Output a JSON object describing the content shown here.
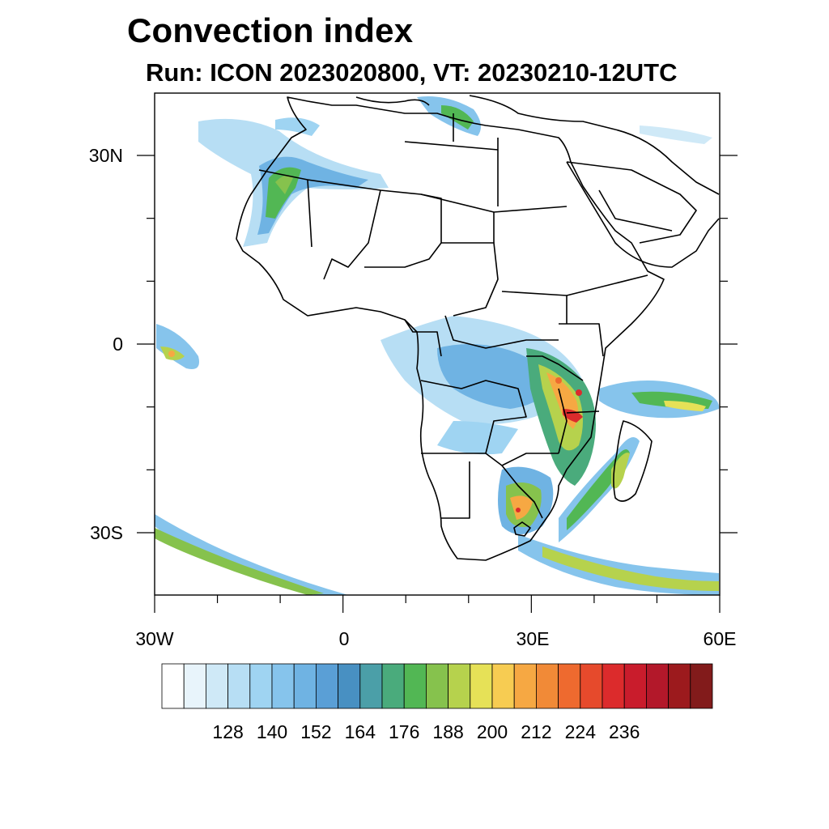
{
  "title": "Convection index",
  "subtitle": "Run: ICON 2023020800,  VT: 20230210-12UTC",
  "map": {
    "region": "Africa",
    "lon_labels": [
      "30W",
      "0",
      "30E",
      "60E"
    ],
    "lat_labels": [
      "30N",
      "0",
      "30S"
    ]
  },
  "colorbar": {
    "colors": [
      "#ffffff",
      "#e8f4fb",
      "#cfe9f7",
      "#b7def4",
      "#9fd4f2",
      "#86c4ec",
      "#6fb3e3",
      "#5a9fd6",
      "#4890c2",
      "#4b9fa8",
      "#4aab7c",
      "#52b754",
      "#86c24d",
      "#b6d24d",
      "#e6e157",
      "#f7cc52",
      "#f6a843",
      "#f18a37",
      "#ee6a2f",
      "#e64a2c",
      "#dc2b2c",
      "#c91c2c",
      "#b3182a",
      "#9c1a1d",
      "#821b1b"
    ],
    "tick_labels": [
      "128",
      "140",
      "152",
      "164",
      "176",
      "188",
      "200",
      "212",
      "224",
      "236"
    ]
  }
}
